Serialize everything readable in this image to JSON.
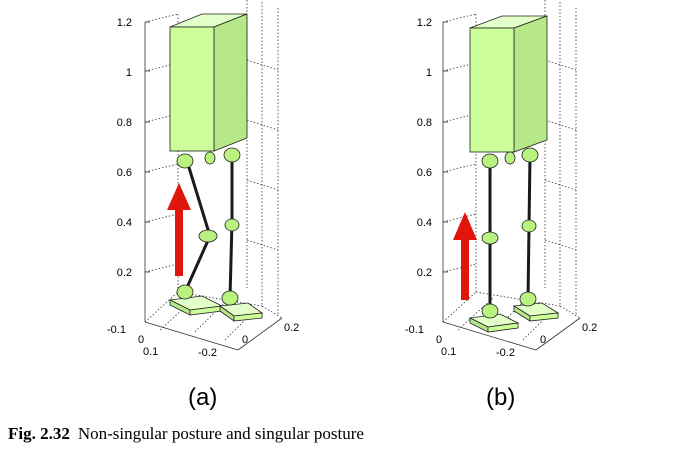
{
  "panels": [
    {
      "label": "(a)",
      "z_ticks": [
        "1.2",
        "1",
        "0.8",
        "0.6",
        "0.4",
        "0.2"
      ],
      "corner_ticks": [
        "-0.1",
        "0",
        "0.1"
      ],
      "x_ticks": [
        "-0.2",
        "0",
        "0.2"
      ]
    },
    {
      "label": "(b)",
      "z_ticks": [
        "1.2",
        "1",
        "0.8",
        "0.6",
        "0.4",
        "0.2"
      ],
      "corner_ticks": [
        "-0.1",
        "0",
        "0.1"
      ],
      "x_ticks": [
        "-0.2",
        "0",
        "0.2"
      ]
    }
  ],
  "caption": {
    "label": "Fig. 2.32",
    "text": "Non-singular posture and singular posture"
  },
  "colors": {
    "body_fill": "#ccff99",
    "body_side": "#b6e88a",
    "body_top": "#e3ffc9",
    "link": "#1a1a1a",
    "joint": "#b9f27f",
    "arrow": "#e0160c",
    "grid": "#333333"
  }
}
